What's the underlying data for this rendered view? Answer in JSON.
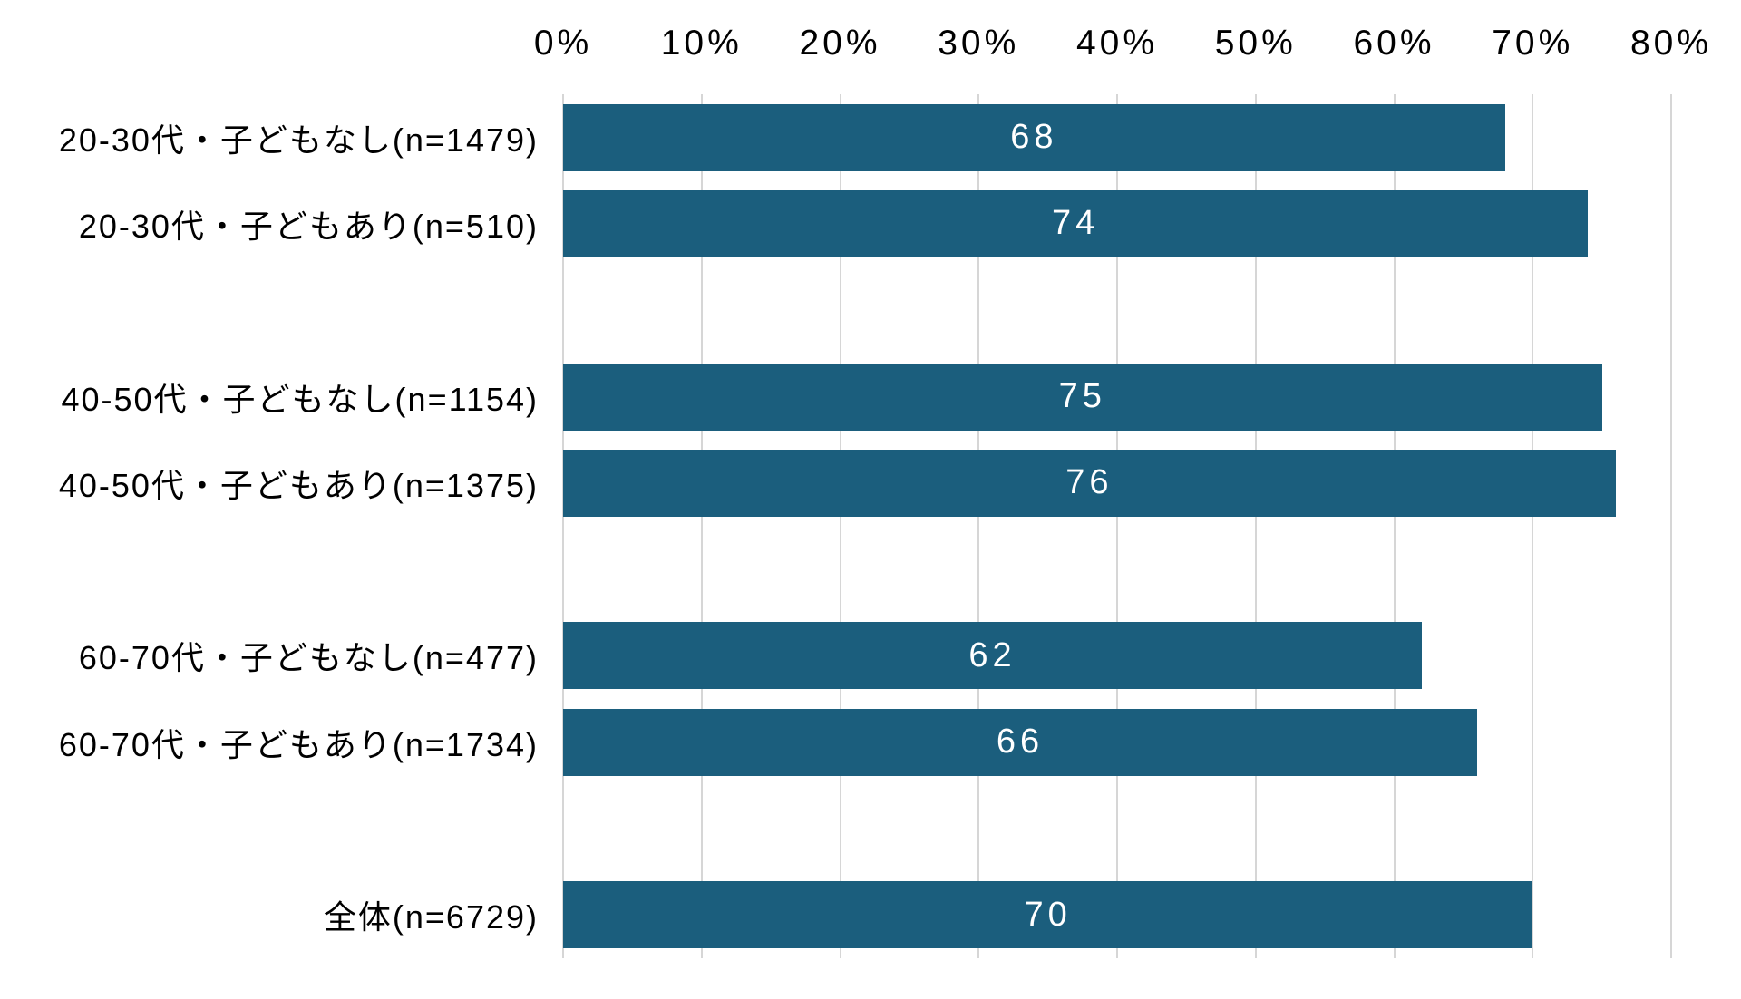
{
  "chart_data": {
    "type": "bar",
    "orientation": "horizontal",
    "title": "",
    "categories": [
      "20-30代・子どもなし(n=1479)",
      "20-30代・子どもあり(n=510)",
      "40-50代・子どもなし(n=1154)",
      "40-50代・子どもあり(n=1375)",
      "60-70代・子どもなし(n=477)",
      "60-70代・子どもあり(n=1734)",
      "全体(n=6729)"
    ],
    "values": [
      68,
      74,
      75,
      76,
      62,
      66,
      70
    ],
    "value_labels": [
      "68",
      "74",
      "75",
      "76",
      "62",
      "66",
      "70"
    ],
    "x_ticks": [
      "0%",
      "10%",
      "20%",
      "30%",
      "40%",
      "50%",
      "60%",
      "70%",
      "80%"
    ],
    "xlim": [
      0,
      80
    ],
    "grid": true,
    "legend": "none",
    "axis_position": "top",
    "row_slots": [
      0,
      1,
      3,
      4,
      6,
      7,
      9
    ],
    "slot_count": 10,
    "colors": {
      "bar": "#1B5E7D",
      "grid": "#D6D6D6",
      "value_label": "#FFFFFF",
      "tick_label": "#000000",
      "category_label": "#000000",
      "background": "#FFFFFF"
    }
  }
}
